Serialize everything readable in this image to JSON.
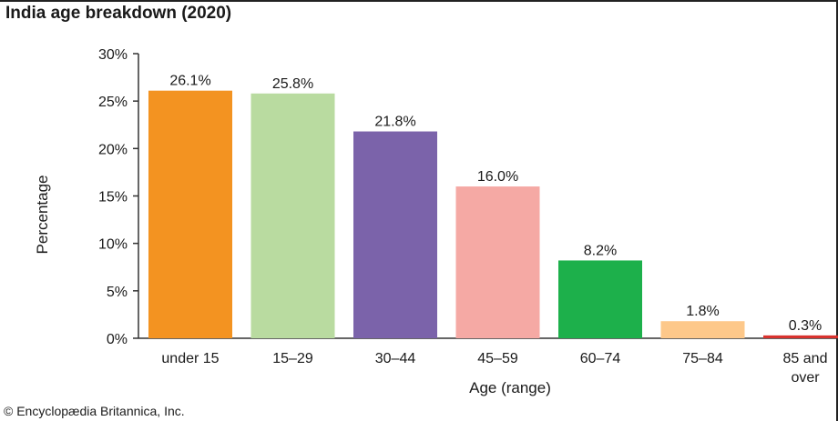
{
  "title": "India age breakdown (2020)",
  "copyright": "© Encyclopædia Britannica, Inc.",
  "chart_data": {
    "type": "bar",
    "title": "India age breakdown (2020)",
    "xlabel": "Age (range)",
    "ylabel": "Percentage",
    "ylim": [
      0,
      30
    ],
    "yticks": [
      "0%",
      "5%",
      "10%",
      "15%",
      "20%",
      "25%",
      "30%"
    ],
    "categories": [
      "under 15",
      "15–29",
      "30–44",
      "45–59",
      "60–74",
      "75–84",
      "85 and over"
    ],
    "values": [
      26.1,
      25.8,
      21.8,
      16.0,
      8.2,
      1.8,
      0.3
    ],
    "value_labels": [
      "26.1%",
      "25.8%",
      "21.8%",
      "16.0%",
      "8.2%",
      "1.8%",
      "0.3%"
    ],
    "colors": [
      "#f39321",
      "#b9dba0",
      "#7b63aa",
      "#f5a9a4",
      "#1db04b",
      "#fdc88a",
      "#d9322e"
    ],
    "grid": false,
    "legend": "none"
  }
}
